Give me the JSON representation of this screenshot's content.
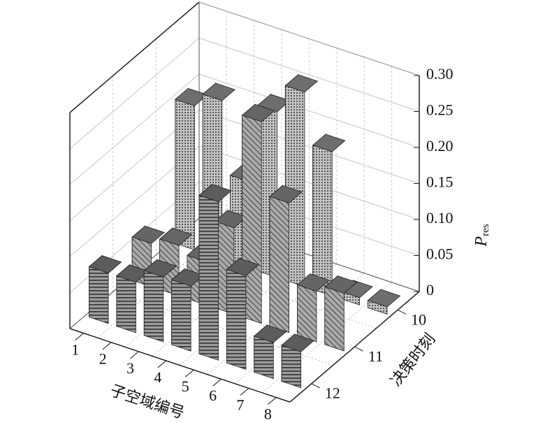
{
  "chart_data": {
    "type": "bar3d",
    "x_label": "子空域编号",
    "y_label": "决策时刻",
    "z_label": {
      "main": "P",
      "sub": "res"
    },
    "categories": [
      "1",
      "2",
      "3",
      "4",
      "5",
      "6",
      "7",
      "8"
    ],
    "series": [
      {
        "name": "10",
        "color": "#b8b8b8",
        "hatch": "dots",
        "values": [
          0.2,
          0.22,
          0.12,
          0.23,
          0.27,
          0.2,
          0.01,
          0.01
        ]
      },
      {
        "name": "11",
        "color": "#a8a8a8",
        "hatch": "diagonal",
        "values": [
          0.06,
          0.07,
          0.06,
          0.12,
          0.28,
          0.18,
          0.07,
          0.08
        ]
      },
      {
        "name": "12",
        "color": "#9a9a9a",
        "hatch": "horizontal",
        "values": [
          0.07,
          0.07,
          0.09,
          0.09,
          0.22,
          0.13,
          0.05,
          0.05
        ]
      }
    ],
    "zlim": [
      0,
      0.3
    ],
    "zticks": [
      0,
      0.05,
      {
        "value": 0.1,
        "label": "0.10"
      },
      0.15,
      {
        "value": 0.2,
        "label": "0.20"
      },
      0.25,
      {
        "value": 0.3,
        "label": "0.30"
      }
    ],
    "grid": true
  }
}
